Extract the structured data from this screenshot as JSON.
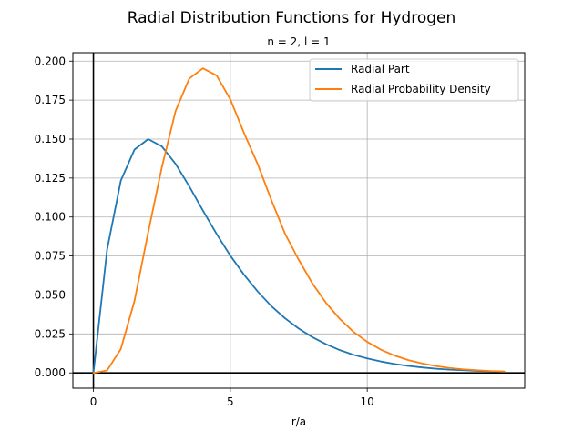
{
  "figure": {
    "suptitle": "Radial Distribution Functions for Hydrogen"
  },
  "chart_data": {
    "type": "line",
    "title": "n = 2, l = 1",
    "xlabel": "r/a",
    "ylabel": "",
    "xlim": [
      -0.75,
      15.75
    ],
    "ylim": [
      -0.0098,
      0.2054
    ],
    "x_ticks": [
      0,
      5,
      10
    ],
    "y_ticks": [
      0.0,
      0.025,
      0.05,
      0.075,
      0.1,
      0.125,
      0.15,
      0.175,
      0.2
    ],
    "x_tick_labels": [
      "0",
      "5",
      "10"
    ],
    "y_tick_labels": [
      "0.000",
      "0.025",
      "0.050",
      "0.075",
      "0.100",
      "0.125",
      "0.150",
      "0.175",
      "0.200"
    ],
    "grid": true,
    "axis_lines_at_zero": true,
    "legend_position": "top-right",
    "series": [
      {
        "name": "Radial Part",
        "color": "#1f77b4",
        "x": [
          0,
          0.5,
          1,
          1.5,
          2,
          2.5,
          3,
          3.5,
          4,
          4.5,
          5,
          5.5,
          6,
          6.5,
          7,
          7.5,
          8,
          8.5,
          9,
          9.5,
          10,
          10.5,
          11,
          11.5,
          12,
          12.5,
          13,
          13.5,
          14,
          14.5,
          15
        ],
        "values": [
          0.0,
          0.0791,
          0.1233,
          0.1433,
          0.15,
          0.1453,
          0.1341,
          0.1197,
          0.1041,
          0.0891,
          0.0752,
          0.063,
          0.0522,
          0.0428,
          0.035,
          0.0284,
          0.0229,
          0.0184,
          0.0146,
          0.0116,
          0.0093,
          0.0073,
          0.0057,
          0.0045,
          0.0035,
          0.0027,
          0.0021,
          0.0017,
          0.0013,
          0.001,
          0.0008
        ]
      },
      {
        "name": "Radial Probability Density",
        "color": "#ff7f0e",
        "x": [
          0,
          0.5,
          1,
          1.5,
          2,
          2.5,
          3,
          3.5,
          4,
          4.5,
          5,
          5.5,
          6,
          6.5,
          7,
          7.5,
          8,
          8.5,
          9,
          9.5,
          10,
          10.5,
          11,
          11.5,
          12,
          12.5,
          13,
          13.5,
          14,
          14.5,
          15
        ],
        "values": [
          0.0,
          0.0016,
          0.0153,
          0.0462,
          0.0902,
          0.132,
          0.168,
          0.1888,
          0.1954,
          0.1908,
          0.1755,
          0.1539,
          0.1339,
          0.1108,
          0.0892,
          0.0725,
          0.0573,
          0.0448,
          0.0346,
          0.0263,
          0.0199,
          0.0149,
          0.0111,
          0.0082,
          0.0061,
          0.0044,
          0.0032,
          0.0023,
          0.0017,
          0.0012,
          0.0009
        ]
      }
    ]
  }
}
